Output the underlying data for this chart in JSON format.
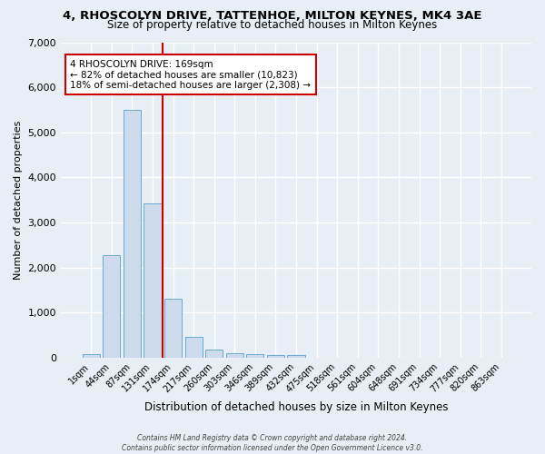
{
  "title": "4, RHOSCOLYN DRIVE, TATTENHOE, MILTON KEYNES, MK4 3AE",
  "subtitle": "Size of property relative to detached houses in Milton Keynes",
  "xlabel": "Distribution of detached houses by size in Milton Keynes",
  "ylabel": "Number of detached properties",
  "footer_line1": "Contains HM Land Registry data © Crown copyright and database right 2024.",
  "footer_line2": "Contains public sector information licensed under the Open Government Licence v3.0.",
  "bar_labels": [
    "1sqm",
    "44sqm",
    "87sqm",
    "131sqm",
    "174sqm",
    "217sqm",
    "260sqm",
    "303sqm",
    "346sqm",
    "389sqm",
    "432sqm",
    "475sqm",
    "518sqm",
    "561sqm",
    "604sqm",
    "648sqm",
    "691sqm",
    "734sqm",
    "777sqm",
    "820sqm",
    "863sqm"
  ],
  "bar_values": [
    75,
    2280,
    5490,
    3430,
    1310,
    450,
    185,
    100,
    75,
    55,
    55,
    0,
    0,
    0,
    0,
    0,
    0,
    0,
    0,
    0,
    0
  ],
  "bar_color": "#ccdaeb",
  "bar_edge_color": "#6aaad4",
  "vline_color": "#cc0000",
  "vline_x_index": 4,
  "annotation_text": "4 RHOSCOLYN DRIVE: 169sqm\n← 82% of detached houses are smaller (10,823)\n18% of semi-detached houses are larger (2,308) →",
  "annotation_box_color": "white",
  "annotation_box_edge_color": "#cc0000",
  "ylim": [
    0,
    7000
  ],
  "bg_color": "#e8eef5",
  "grid_color": "white",
  "title_fontsize": 9.5,
  "subtitle_fontsize": 8.5,
  "ylabel_fontsize": 8,
  "xlabel_fontsize": 8.5,
  "tick_fontsize": 7,
  "annotation_fontsize": 7.5,
  "footer_fontsize": 5.5
}
